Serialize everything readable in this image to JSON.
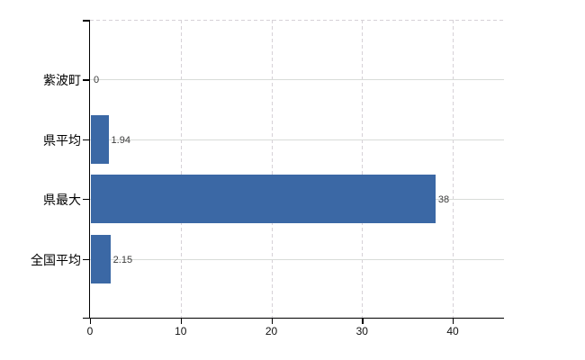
{
  "chart_data": {
    "type": "bar",
    "orientation": "horizontal",
    "title": "",
    "xlabel": "",
    "ylabel": "",
    "categories": [
      "紫波町",
      "県平均",
      "県最大",
      "全国平均"
    ],
    "values": [
      0,
      1.94,
      38,
      2.15
    ],
    "value_labels": [
      "0",
      "1.94",
      "38",
      "2.15"
    ],
    "x_ticks": [
      0,
      10,
      20,
      30,
      40
    ],
    "x_tick_labels": [
      "0",
      "10",
      "20",
      "30",
      "40"
    ],
    "xlim": [
      0,
      45.7
    ],
    "grid": true,
    "grid_horizontal_style": "solid",
    "grid_vertical_style": "dashed",
    "legend_position": "none",
    "colors": {
      "bar": "#3b68a5",
      "axis": "#000000",
      "grid_horizontal": "#d8dcd8",
      "grid_vertical": "#d6d1d7",
      "plot_top_border": "#d6d1d7",
      "category_label": "#000000",
      "value_label": "#3d3d3d",
      "tick_label": "#111111",
      "background": "#ffffff"
    }
  }
}
